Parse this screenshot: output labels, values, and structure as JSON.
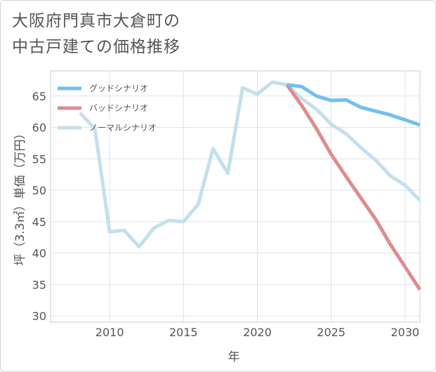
{
  "title_lines": [
    "大阪府門真市大倉町の",
    "中古戸建ての価格推移"
  ],
  "chart_data": {
    "type": "line",
    "title": "大阪府門真市大倉町の中古戸建ての価格推移",
    "xlabel": "年",
    "ylabel": "坪（3.3㎡）単価（万円）",
    "xlim": [
      2006,
      2031
    ],
    "ylim": [
      29,
      69
    ],
    "xticks": [
      2010,
      2015,
      2020,
      2025,
      2030
    ],
    "yticks": [
      30,
      35,
      40,
      45,
      50,
      55,
      60,
      65
    ],
    "grid": true,
    "legend_position": "top-left",
    "series": [
      {
        "name": "グッドシナリオ",
        "color": "#74bef0",
        "x": [
          2022,
          2023,
          2024,
          2025,
          2026,
          2027,
          2028,
          2029,
          2030,
          2031
        ],
        "y": [
          66.8,
          66.5,
          65.0,
          64.3,
          64.4,
          63.2,
          62.6,
          62.0,
          61.2,
          60.4
        ]
      },
      {
        "name": "バッドシナリオ",
        "color": "#de8b8f",
        "x": [
          2022,
          2023,
          2024,
          2025,
          2026,
          2027,
          2028,
          2029,
          2030,
          2031
        ],
        "y": [
          66.8,
          63.5,
          59.8,
          55.7,
          52.2,
          48.8,
          45.4,
          41.4,
          37.8,
          34.2
        ]
      },
      {
        "name": "ノーマルシナリオ",
        "color": "#c3e0ec",
        "x": [
          2008,
          2009,
          2010,
          2011,
          2012,
          2013,
          2014,
          2015,
          2016,
          2017,
          2018,
          2019,
          2020,
          2021,
          2022,
          2023,
          2024,
          2025,
          2026,
          2027,
          2028,
          2029,
          2030,
          2031
        ],
        "y": [
          62.3,
          59.8,
          43.4,
          43.6,
          41.0,
          44.0,
          45.2,
          45.0,
          47.8,
          56.6,
          52.7,
          66.3,
          65.3,
          67.2,
          66.8,
          64.6,
          62.9,
          60.5,
          59.0,
          56.8,
          54.8,
          52.3,
          50.8,
          48.4
        ]
      }
    ]
  }
}
